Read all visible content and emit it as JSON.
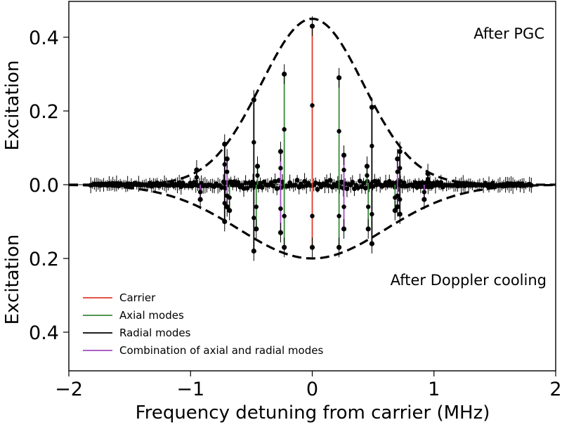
{
  "chart_data": {
    "type": "line",
    "xlabel": "Frequency detuning from carrier (MHz)",
    "ylabel_top": "Excitation",
    "ylabel_bottom": "Excitation",
    "xlim": [
      -2,
      2
    ],
    "ylim_top": [
      0,
      0.5
    ],
    "ylim_bottom": [
      0,
      0.5
    ],
    "x_ticks": [
      -2,
      -1,
      0,
      1,
      2
    ],
    "x_tick_labels": [
      "−2",
      "−1",
      "0",
      "1",
      "2"
    ],
    "y_tick_labels_top": [
      "0.0",
      "0.2",
      "0.4"
    ],
    "y_tick_labels_bottom": [
      "0.2",
      "0.4"
    ],
    "annotations": {
      "top": "After PGC",
      "bottom": "After Doppler cooling"
    },
    "legend_position": "bottom-left",
    "grid": false,
    "series": [
      {
        "name": "Carrier",
        "color": "#e03c28",
        "peaks_top": [
          {
            "x": 0.0,
            "y": 0.43
          }
        ],
        "peaks_bottom": [
          {
            "x": 0.0,
            "y": 0.17
          }
        ]
      },
      {
        "name": "Axial modes",
        "color": "#3a8a3a",
        "peaks_top": [
          {
            "x": -0.23,
            "y": 0.3
          },
          {
            "x": 0.22,
            "y": 0.29
          },
          {
            "x": -0.45,
            "y": 0.05
          },
          {
            "x": 0.45,
            "y": 0.05
          }
        ],
        "peaks_bottom": [
          {
            "x": -0.23,
            "y": 0.17
          },
          {
            "x": 0.22,
            "y": 0.17
          },
          {
            "x": -0.46,
            "y": 0.12
          },
          {
            "x": 0.46,
            "y": 0.12
          },
          {
            "x": -0.68,
            "y": 0.07
          },
          {
            "x": 0.68,
            "y": 0.07
          }
        ]
      },
      {
        "name": "Radial modes",
        "color": "#000000",
        "peaks_top": [
          {
            "x": -0.48,
            "y": 0.23
          },
          {
            "x": 0.49,
            "y": 0.21
          },
          {
            "x": -0.72,
            "y": 0.11
          },
          {
            "x": 0.72,
            "y": 0.09
          },
          {
            "x": -0.95,
            "y": 0.04
          },
          {
            "x": 0.95,
            "y": 0.03
          }
        ],
        "peaks_bottom": [
          {
            "x": -0.48,
            "y": 0.18
          },
          {
            "x": 0.49,
            "y": 0.16
          },
          {
            "x": -0.72,
            "y": 0.1
          },
          {
            "x": 0.72,
            "y": 0.08
          }
        ]
      },
      {
        "name": "Combination of axial and radial modes",
        "color": "#a04cc0",
        "peaks_top": [
          {
            "x": -0.26,
            "y": 0.09
          },
          {
            "x": 0.26,
            "y": 0.08
          },
          {
            "x": -0.7,
            "y": 0.07
          },
          {
            "x": 0.7,
            "y": 0.07
          }
        ],
        "peaks_bottom": [
          {
            "x": -0.26,
            "y": 0.13
          },
          {
            "x": 0.26,
            "y": 0.12
          },
          {
            "x": -0.7,
            "y": 0.06
          },
          {
            "x": 0.7,
            "y": 0.06
          },
          {
            "x": -0.92,
            "y": 0.04
          },
          {
            "x": 0.92,
            "y": 0.04
          }
        ]
      }
    ],
    "envelope_top": {
      "style": "dashed",
      "peak": 0.45,
      "center": 0,
      "sigma_mhz": 0.42
    },
    "envelope_bottom": {
      "style": "dashed",
      "peak": 0.2,
      "center": 0,
      "sigma_mhz": 0.6
    }
  }
}
